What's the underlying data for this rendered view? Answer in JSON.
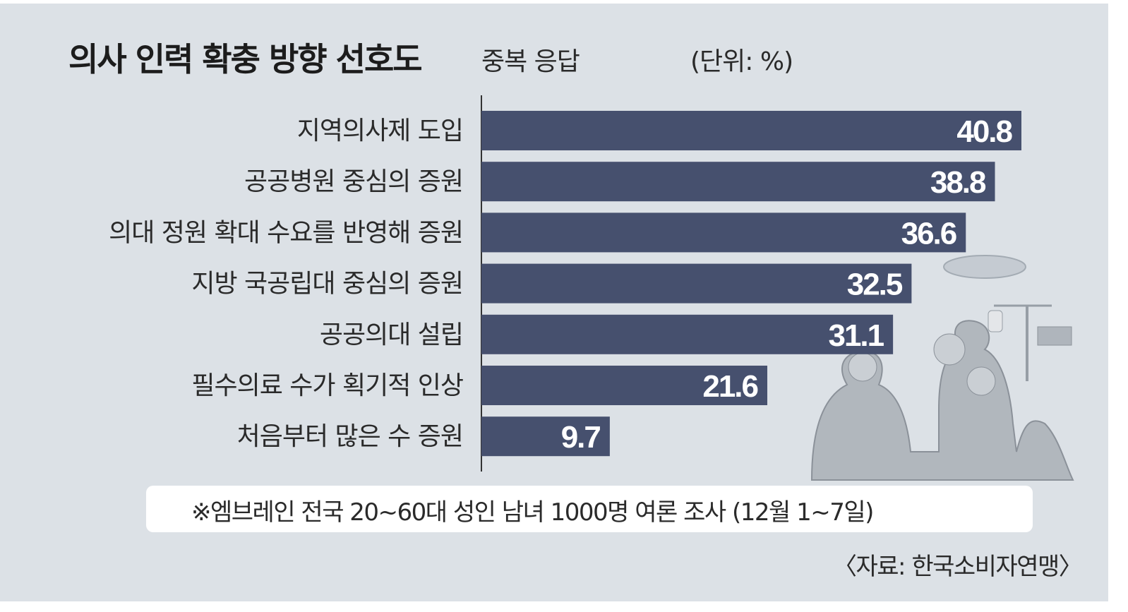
{
  "title": "의사 인력 확충 방향 선호도",
  "subtitle": "중복 응답",
  "unit": "(단위: %)",
  "note": "※엠브레인 전국 20~60대 성인 남녀 1000명 여론 조사 (12월 1~7일)",
  "source": "〈자료: 한국소비자연맹〉",
  "colors": {
    "bar": "#46506e",
    "background": "#dce1e6",
    "axis": "#333333"
  },
  "chart_data": {
    "type": "bar",
    "orientation": "horizontal",
    "categories": [
      "지역의사제 도입",
      "공공병원 중심의 증원",
      "의대 정원 확대 수요를 반영해 증원",
      "지방 국공립대 중심의 증원",
      "공공의대 설립",
      "필수의료 수가 획기적 인상",
      "처음부터 많은 수 증원"
    ],
    "values": [
      40.8,
      38.8,
      36.6,
      32.5,
      31.1,
      21.6,
      9.7
    ],
    "value_labels": [
      "40.8",
      "38.8",
      "36.6",
      "32.5",
      "31.1",
      "21.6",
      "9.7"
    ],
    "data_labels": true,
    "grid": false
  }
}
